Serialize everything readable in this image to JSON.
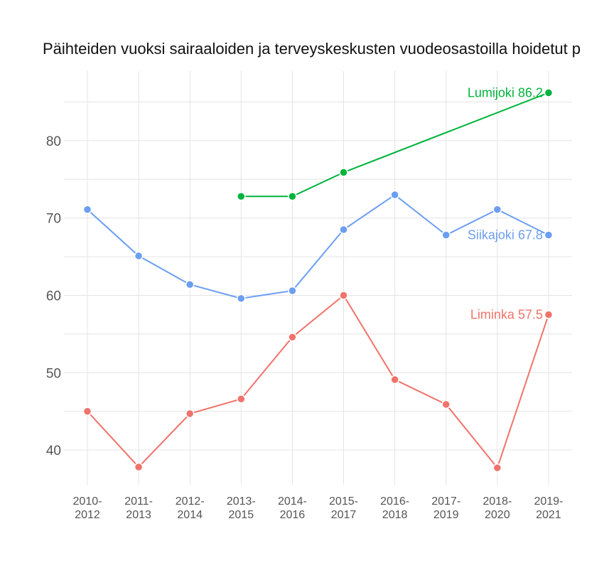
{
  "chart_data": {
    "type": "line",
    "title": "Päihteiden vuoksi sairaaloiden ja terveyskeskusten vuodeosastoilla hoidetut p",
    "categories": [
      "2010-2012",
      "2011-2013",
      "2012-2014",
      "2013-2015",
      "2014-2016",
      "2015-2017",
      "2016-2018",
      "2017-2019",
      "2018-2020",
      "2019-2021"
    ],
    "category_lines": [
      [
        "2010-",
        "2012"
      ],
      [
        "2011-",
        "2013"
      ],
      [
        "2012-",
        "2014"
      ],
      [
        "2013-",
        "2015"
      ],
      [
        "2014-",
        "2016"
      ],
      [
        "2015-",
        "2017"
      ],
      [
        "2016-",
        "2018"
      ],
      [
        "2017-",
        "2019"
      ],
      [
        "2018-",
        "2020"
      ],
      [
        "2019-",
        "2021"
      ]
    ],
    "y_ticks": [
      40,
      50,
      60,
      70,
      80
    ],
    "ylim": [
      35.5,
      89
    ],
    "grid": true,
    "series": [
      {
        "name": "Lumijoki",
        "color": "#00b33c",
        "values": [
          null,
          null,
          null,
          72.8,
          72.8,
          75.9,
          null,
          null,
          null,
          86.2
        ],
        "end_label": "Lumijoki 86.2"
      },
      {
        "name": "Siikajoki",
        "color": "#6c9ef2",
        "values": [
          71.1,
          65.1,
          61.4,
          59.6,
          60.6,
          68.5,
          73.0,
          67.8,
          71.1,
          67.8
        ],
        "end_label": "Siikajoki 67.8"
      },
      {
        "name": "Liminka",
        "color": "#f0736b",
        "values": [
          45.0,
          37.8,
          44.7,
          46.6,
          54.6,
          60.0,
          49.1,
          45.9,
          37.7,
          57.5
        ],
        "end_label": "Liminka 57.5"
      }
    ]
  }
}
